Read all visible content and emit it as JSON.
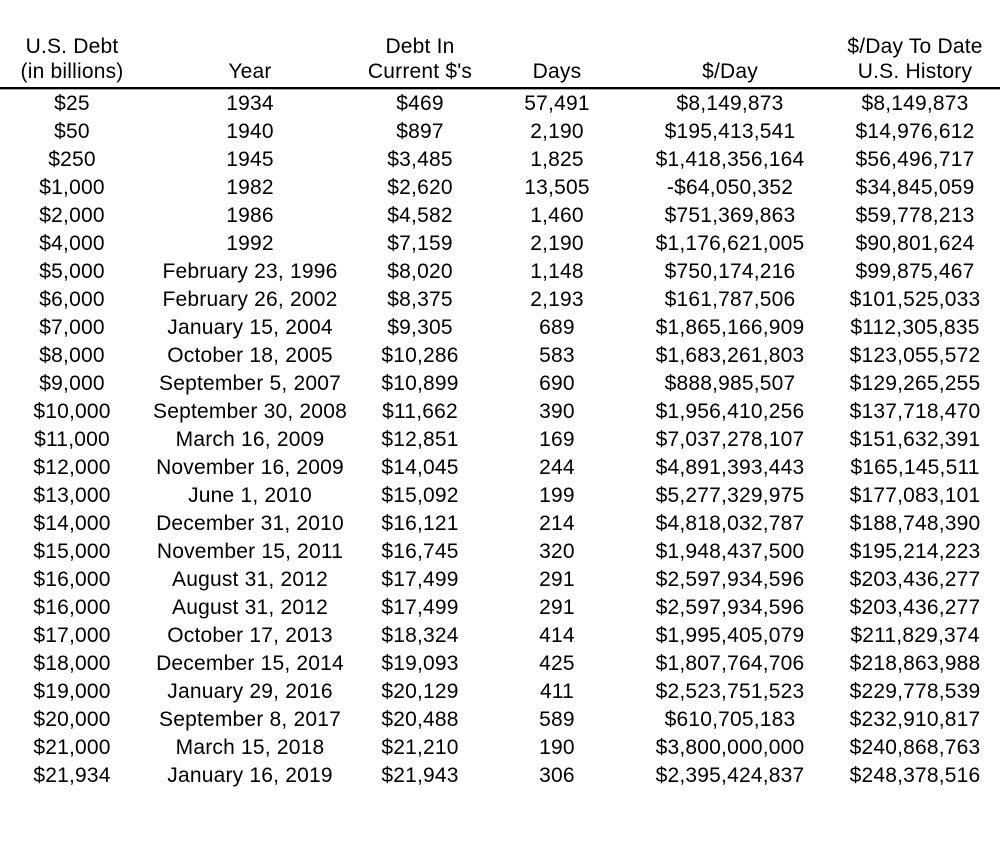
{
  "page": {
    "background": "#ffffff",
    "text_color": "#000000",
    "rule_color": "#000000"
  },
  "chart_data": {
    "type": "table",
    "title": "",
    "legend_position": "none",
    "grid": false,
    "columns": [
      {
        "id": "debt-billions",
        "line1": "U.S. Debt",
        "line2": "(in billions)"
      },
      {
        "id": "year",
        "line1": "",
        "line2": "Year"
      },
      {
        "id": "debt-current",
        "line1": "Debt In",
        "line2": "Current $'s"
      },
      {
        "id": "days",
        "line1": "",
        "line2": "Days"
      },
      {
        "id": "per-day",
        "line1": "",
        "line2": "$/Day"
      },
      {
        "id": "per-day-to-date",
        "line1": "$/Day To Date",
        "line2": "U.S. History"
      }
    ],
    "rows": [
      [
        "$25",
        "1934",
        "$469",
        "57,491",
        "$8,149,873",
        "$8,149,873"
      ],
      [
        "$50",
        "1940",
        "$897",
        "2,190",
        "$195,413,541",
        "$14,976,612"
      ],
      [
        "$250",
        "1945",
        "$3,485",
        "1,825",
        "$1,418,356,164",
        "$56,496,717"
      ],
      [
        "$1,000",
        "1982",
        "$2,620",
        "13,505",
        "-$64,050,352",
        "$34,845,059"
      ],
      [
        "$2,000",
        "1986",
        "$4,582",
        "1,460",
        "$751,369,863",
        "$59,778,213"
      ],
      [
        "$4,000",
        "1992",
        "$7,159",
        "2,190",
        "$1,176,621,005",
        "$90,801,624"
      ],
      [
        "$5,000",
        "February 23, 1996",
        "$8,020",
        "1,148",
        "$750,174,216",
        "$99,875,467"
      ],
      [
        "$6,000",
        "February 26, 2002",
        "$8,375",
        "2,193",
        "$161,787,506",
        "$101,525,033"
      ],
      [
        "$7,000",
        "January 15, 2004",
        "$9,305",
        "689",
        "$1,865,166,909",
        "$112,305,835"
      ],
      [
        "$8,000",
        "October 18, 2005",
        "$10,286",
        "583",
        "$1,683,261,803",
        "$123,055,572"
      ],
      [
        "$9,000",
        "September 5, 2007",
        "$10,899",
        "690",
        "$888,985,507",
        "$129,265,255"
      ],
      [
        "$10,000",
        "September 30, 2008",
        "$11,662",
        "390",
        "$1,956,410,256",
        "$137,718,470"
      ],
      [
        "$11,000",
        "March 16, 2009",
        "$12,851",
        "169",
        "$7,037,278,107",
        "$151,632,391"
      ],
      [
        "$12,000",
        "November 16, 2009",
        "$14,045",
        "244",
        "$4,891,393,443",
        "$165,145,511"
      ],
      [
        "$13,000",
        "June 1, 2010",
        "$15,092",
        "199",
        "$5,277,329,975",
        "$177,083,101"
      ],
      [
        "$14,000",
        "December 31, 2010",
        "$16,121",
        "214",
        "$4,818,032,787",
        "$188,748,390"
      ],
      [
        "$15,000",
        "November 15, 2011",
        "$16,745",
        "320",
        "$1,948,437,500",
        "$195,214,223"
      ],
      [
        "$16,000",
        "August 31, 2012",
        "$17,499",
        "291",
        "$2,597,934,596",
        "$203,436,277"
      ],
      [
        "$16,000",
        "August 31, 2012",
        "$17,499",
        "291",
        "$2,597,934,596",
        "$203,436,277"
      ],
      [
        "$17,000",
        "October 17, 2013",
        "$18,324",
        "414",
        "$1,995,405,079",
        "$211,829,374"
      ],
      [
        "$18,000",
        "December 15, 2014",
        "$19,093",
        "425",
        "$1,807,764,706",
        "$218,863,988"
      ],
      [
        "$19,000",
        "January 29, 2016",
        "$20,129",
        "411",
        "$2,523,751,523",
        "$229,778,539"
      ],
      [
        "$20,000",
        "September 8, 2017",
        "$20,488",
        "589",
        "$610,705,183",
        "$232,910,817"
      ],
      [
        "$21,000",
        "March 15, 2018",
        "$21,210",
        "190",
        "$3,800,000,000",
        "$240,868,763"
      ],
      [
        "$21,934",
        "January 16, 2019",
        "$21,943",
        "306",
        "$2,395,424,837",
        "$248,378,516"
      ]
    ]
  }
}
